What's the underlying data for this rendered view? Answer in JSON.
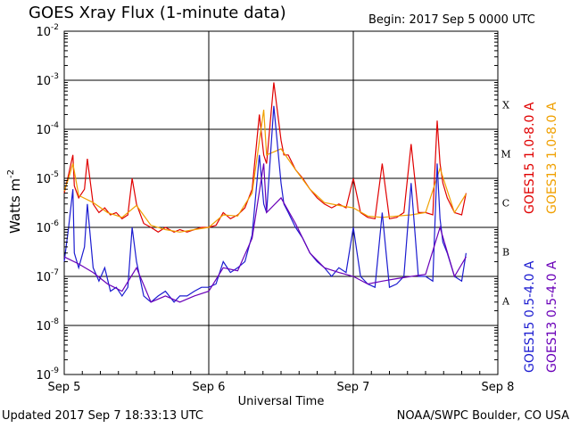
{
  "header": {
    "title": "GOES Xray Flux (1-minute data)",
    "begin": "Begin:  2017 Sep 5 0000 UTC"
  },
  "footer": {
    "updated": "Updated 2017 Sep  7 18:33:13 UTC",
    "credit": "NOAA/SWPC Boulder, CO USA"
  },
  "chart_data": {
    "type": "line",
    "title": "GOES Xray Flux (1-minute data)",
    "xlabel": "Universal Time",
    "ylabel": "Watts m",
    "ylabel_sup": "-2",
    "yscale": "log",
    "xlim": [
      0,
      3
    ],
    "ylim": [
      1e-09,
      0.01
    ],
    "grid": "horizontal major decades",
    "x_ticks": [
      {
        "x": 0,
        "label": "Sep 5"
      },
      {
        "x": 1,
        "label": "Sep 6"
      },
      {
        "x": 2,
        "label": "Sep 7"
      },
      {
        "x": 3,
        "label": "Sep 8"
      }
    ],
    "y_ticks": [
      {
        "exp": -2,
        "base": "10",
        "sup": "-2"
      },
      {
        "exp": -3,
        "base": "10",
        "sup": "-3"
      },
      {
        "exp": -4,
        "base": "10",
        "sup": "-4"
      },
      {
        "exp": -5,
        "base": "10",
        "sup": "-5"
      },
      {
        "exp": -6,
        "base": "10",
        "sup": "-6"
      },
      {
        "exp": -7,
        "base": "10",
        "sup": "-7"
      },
      {
        "exp": -8,
        "base": "10",
        "sup": "-8"
      },
      {
        "exp": -9,
        "base": "10",
        "sup": "-9"
      }
    ],
    "flare_classes": [
      {
        "label": "X",
        "exp": -3.5
      },
      {
        "label": "M",
        "exp": -4.5
      },
      {
        "label": "C",
        "exp": -5.5
      },
      {
        "label": "B",
        "exp": -6.5
      },
      {
        "label": "A",
        "exp": -7.5
      }
    ],
    "legend": [
      {
        "text": "GOES15 1.0-8.0 A",
        "color": "#e00000"
      },
      {
        "text": "GOES13 1.0-8.0 A",
        "color": "#f0a000"
      },
      {
        "text": "GOES15 0.5-4.0 A",
        "color": "#1c1cd0"
      },
      {
        "text": "GOES13 0.5-4.0 A",
        "color": "#6a00b8"
      }
    ],
    "series": [
      {
        "name": "GOES15 1.0-8.0 A",
        "color": "#e00000",
        "x": [
          0.0,
          0.03,
          0.06,
          0.07,
          0.1,
          0.14,
          0.16,
          0.2,
          0.24,
          0.28,
          0.32,
          0.36,
          0.4,
          0.44,
          0.47,
          0.5,
          0.55,
          0.6,
          0.65,
          0.7,
          0.76,
          0.8,
          0.85,
          0.9,
          0.95,
          1.0,
          1.05,
          1.1,
          1.15,
          1.2,
          1.25,
          1.3,
          1.35,
          1.38,
          1.4,
          1.45,
          1.5,
          1.52,
          1.55,
          1.6,
          1.65,
          1.7,
          1.75,
          1.8,
          1.85,
          1.9,
          1.95,
          2.0,
          2.05,
          2.1,
          2.15,
          2.2,
          2.25,
          2.3,
          2.35,
          2.4,
          2.45,
          2.5,
          2.55,
          2.58,
          2.6,
          2.62,
          2.65,
          2.7,
          2.75,
          2.78
        ],
        "y": [
          5e-06,
          1.2e-05,
          3e-05,
          7e-06,
          4e-06,
          6e-06,
          2.5e-05,
          3e-06,
          2e-06,
          2.5e-06,
          1.8e-06,
          2e-06,
          1.5e-06,
          1.8e-06,
          1e-05,
          3e-06,
          1.2e-06,
          1e-06,
          8e-07,
          1e-06,
          8e-07,
          9e-07,
          8e-07,
          9e-07,
          1e-06,
          1e-06,
          1.1e-06,
          2e-06,
          1.5e-06,
          1.8e-06,
          2.5e-06,
          6e-06,
          0.0002,
          3e-05,
          2e-05,
          0.0009,
          6e-05,
          3e-05,
          3e-05,
          1.5e-05,
          1e-05,
          6e-06,
          4e-06,
          3e-06,
          2.5e-06,
          3e-06,
          2.5e-06,
          1e-05,
          2e-06,
          1.6e-06,
          1.5e-06,
          2e-05,
          1.5e-06,
          1.6e-06,
          2e-06,
          5e-05,
          2e-06,
          2e-06,
          1.8e-06,
          0.00015,
          2e-05,
          8e-06,
          4e-06,
          2e-06,
          1.8e-06,
          5e-06
        ]
      },
      {
        "name": "GOES13 1.0-8.0 A",
        "color": "#f0a000",
        "x": [
          0.0,
          0.03,
          0.06,
          0.1,
          0.2,
          0.3,
          0.4,
          0.5,
          0.6,
          0.7,
          0.8,
          0.9,
          1.0,
          1.1,
          1.2,
          1.3,
          1.38,
          1.4,
          1.5,
          1.6,
          1.7,
          1.8,
          1.9,
          2.0,
          2.1,
          2.2,
          2.3,
          2.4,
          2.5,
          2.6,
          2.7,
          2.78
        ],
        "y": [
          5.5e-06,
          1e-05,
          2e-05,
          4.5e-06,
          3.2e-06,
          2e-06,
          1.6e-06,
          2.8e-06,
          1.1e-06,
          9e-07,
          8e-07,
          9e-07,
          1e-06,
          1.8e-06,
          1.7e-06,
          5e-06,
          0.00025,
          3e-05,
          4e-05,
          1.5e-05,
          6e-06,
          3.2e-06,
          2.8e-06,
          2.5e-06,
          1.7e-06,
          1.6e-06,
          1.7e-06,
          1.8e-06,
          2e-06,
          1.6e-05,
          2e-06,
          4.8e-06
        ]
      },
      {
        "name": "GOES15 0.5-4.0 A",
        "color": "#1c1cd0",
        "x": [
          0.0,
          0.03,
          0.06,
          0.07,
          0.1,
          0.14,
          0.16,
          0.2,
          0.24,
          0.28,
          0.32,
          0.36,
          0.4,
          0.44,
          0.47,
          0.5,
          0.55,
          0.6,
          0.65,
          0.7,
          0.76,
          0.8,
          0.85,
          0.9,
          0.95,
          1.0,
          1.05,
          1.1,
          1.15,
          1.2,
          1.25,
          1.3,
          1.35,
          1.38,
          1.4,
          1.45,
          1.5,
          1.52,
          1.55,
          1.6,
          1.65,
          1.7,
          1.75,
          1.8,
          1.85,
          1.9,
          1.95,
          2.0,
          2.05,
          2.1,
          2.15,
          2.2,
          2.25,
          2.3,
          2.35,
          2.4,
          2.45,
          2.5,
          2.55,
          2.58,
          2.6,
          2.62,
          2.65,
          2.7,
          2.75,
          2.78
        ],
        "y": [
          2e-07,
          1e-06,
          6e-06,
          3e-07,
          1.5e-07,
          4e-07,
          3e-06,
          1.5e-07,
          8e-08,
          1.5e-07,
          5e-08,
          6e-08,
          4e-08,
          6e-08,
          1e-06,
          2e-07,
          4e-08,
          3e-08,
          4e-08,
          5e-08,
          3e-08,
          4e-08,
          4e-08,
          5e-08,
          6e-08,
          6e-08,
          7e-08,
          2e-07,
          1.2e-07,
          1.5e-07,
          2e-07,
          7e-07,
          3e-05,
          3e-06,
          2e-06,
          0.0003,
          8e-06,
          3e-06,
          2e-06,
          1e-06,
          6e-07,
          3e-07,
          2e-07,
          1.5e-07,
          1e-07,
          1.5e-07,
          1.2e-07,
          1e-06,
          1e-07,
          7e-08,
          6e-08,
          2e-06,
          6e-08,
          7e-08,
          1e-07,
          8e-06,
          1e-07,
          1e-07,
          8e-08,
          2e-05,
          1.5e-06,
          5e-07,
          3e-07,
          1e-07,
          8e-08,
          3e-07
        ]
      },
      {
        "name": "GOES13 0.5-4.0 A",
        "color": "#6a00b8",
        "x": [
          0.0,
          0.1,
          0.2,
          0.3,
          0.4,
          0.5,
          0.6,
          0.7,
          0.8,
          0.9,
          1.0,
          1.1,
          1.2,
          1.3,
          1.38,
          1.4,
          1.5,
          1.6,
          1.7,
          1.8,
          1.9,
          2.0,
          2.1,
          2.2,
          2.3,
          2.4,
          2.5,
          2.6,
          2.7,
          2.78
        ],
        "y": [
          2.5e-07,
          1.8e-07,
          1.2e-07,
          7e-08,
          5e-08,
          1.5e-07,
          3e-08,
          4e-08,
          3e-08,
          4e-08,
          5e-08,
          1.5e-07,
          1.3e-07,
          6e-07,
          2e-05,
          2e-06,
          4e-06,
          1.2e-06,
          3e-07,
          1.5e-07,
          1.2e-07,
          1e-07,
          7e-08,
          8e-08,
          9e-08,
          1e-07,
          1.1e-07,
          1e-06,
          1e-07,
          2.5e-07
        ]
      }
    ]
  }
}
